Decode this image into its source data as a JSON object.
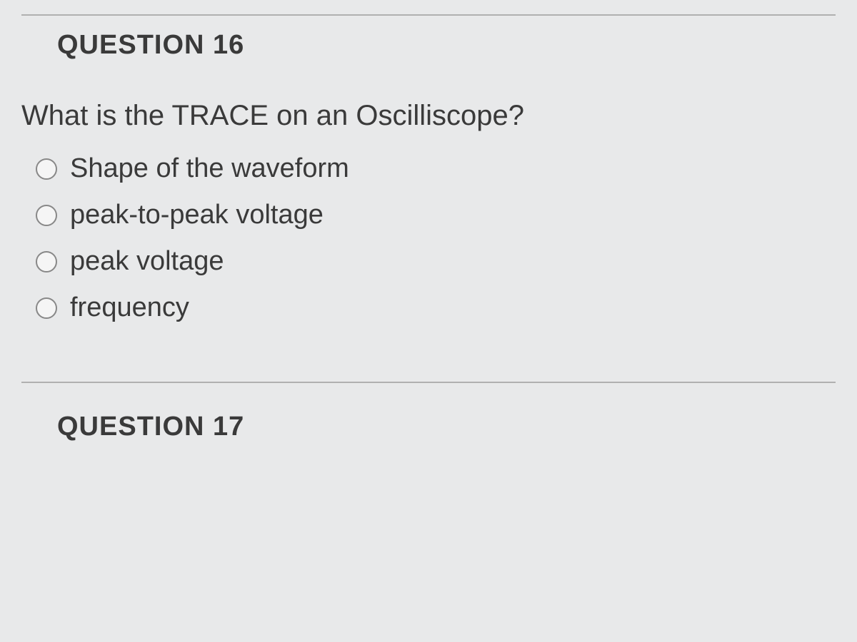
{
  "questions": [
    {
      "heading": "QUESTION 16",
      "prompt": "What is the TRACE on an Oscilliscope?",
      "options": [
        {
          "label": "Shape of the waveform"
        },
        {
          "label": "peak-to-peak voltage"
        },
        {
          "label": "peak voltage"
        },
        {
          "label": "frequency"
        }
      ]
    },
    {
      "heading": "QUESTION 17"
    }
  ],
  "styling": {
    "background_color": "#e8e9ea",
    "text_color": "#3a3a3a",
    "divider_color": "#b0b0b0",
    "radio_border_color": "#888888",
    "radio_fill_color": "#f5f5f5",
    "heading_fontsize": 38,
    "question_fontsize": 40,
    "option_fontsize": 38,
    "font_family": "Arial"
  }
}
